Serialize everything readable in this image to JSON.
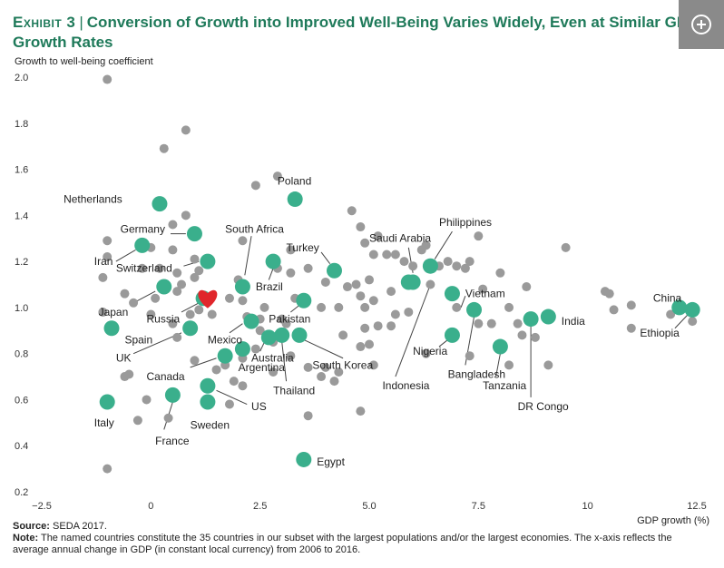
{
  "header": {
    "exhibit": "Exhibit 3",
    "title_line1": "Conversion of Growth into Improved Well-Being Varies Widely, Even at Similar GDP",
    "title_line2": "Growth Rates"
  },
  "expand_icon": "plus-circle-icon",
  "footer": {
    "source_label": "Source:",
    "source_text": "SEDA 2017.",
    "note_label": "Note:",
    "note_text": "The named countries constitute the 35 countries in our subset with the largest populations and/or the largest economies. The x-axis reflects the average annual change in GDP (in constant local currency) from 2006 to 2016."
  },
  "colors": {
    "named": "#3aaf8c",
    "other": "#9a9a9a",
    "highlight": "#e0262b",
    "title": "#1f7a5a"
  },
  "chart_data": {
    "type": "scatter",
    "title": "Conversion of Growth into Improved Well-Being Varies Widely, Even at Similar GDP Growth Rates",
    "xlabel": "GDP growth (%)",
    "ylabel": "Growth to well-being coefficient",
    "xlim": [
      -2.5,
      12.5
    ],
    "ylim": [
      0.2,
      2.0
    ],
    "x_ticks": [
      -2.5,
      0,
      2.5,
      5.0,
      7.5,
      10,
      12.5
    ],
    "x_tick_labels": [
      "−2.5",
      "0",
      "2.5",
      "5.0",
      "7.5",
      "10",
      "12.5"
    ],
    "y_ticks": [
      0.2,
      0.4,
      0.6,
      0.8,
      1.0,
      1.2,
      1.4,
      1.6,
      1.8,
      2.0
    ],
    "y_tick_labels": [
      "0.2",
      "0.4",
      "0.6",
      "0.8",
      "1.0",
      "1.2",
      "1.4",
      "1.6",
      "1.8",
      "2.0"
    ],
    "grid": false,
    "named_countries": [
      {
        "name": "Netherlands",
        "x": 0.2,
        "y": 1.45
      },
      {
        "name": "Poland",
        "x": 3.3,
        "y": 1.47
      },
      {
        "name": "Germany",
        "x": 1.0,
        "y": 1.32
      },
      {
        "name": "South Africa",
        "x": 2.1,
        "y": 1.09
      },
      {
        "name": "Iran",
        "x": -0.2,
        "y": 1.27
      },
      {
        "name": "Switzerland",
        "x": 1.3,
        "y": 1.2
      },
      {
        "name": "Brazil",
        "x": 2.8,
        "y": 1.2
      },
      {
        "name": "Turkey",
        "x": 4.2,
        "y": 1.16
      },
      {
        "name": "Saudi Arabia",
        "x": 6.0,
        "y": 1.11
      },
      {
        "name": "Philippines",
        "x": 6.4,
        "y": 1.18
      },
      {
        "name": "Japan",
        "x": 0.3,
        "y": 1.09
      },
      {
        "name": "Russia",
        "x": 1.2,
        "y": 1.04
      },
      {
        "name": "Spain",
        "x": -0.9,
        "y": 0.91
      },
      {
        "name": "Mexico",
        "x": 2.3,
        "y": 0.94
      },
      {
        "name": "Pakistan",
        "x": 3.5,
        "y": 1.03
      },
      {
        "name": "UK",
        "x": 0.9,
        "y": 0.91
      },
      {
        "name": "Vietnam",
        "x": 6.9,
        "y": 1.06
      },
      {
        "name": "China",
        "x": 12.1,
        "y": 1.0
      },
      {
        "name": "India",
        "x": 9.1,
        "y": 0.96
      },
      {
        "name": "Ethiopia",
        "x": 12.4,
        "y": 0.99
      },
      {
        "name": "Nigeria",
        "x": 6.9,
        "y": 0.88
      },
      {
        "name": "Bangladesh",
        "x": 7.4,
        "y": 0.99
      },
      {
        "name": "Canada",
        "x": 1.7,
        "y": 0.79
      },
      {
        "name": "Australia",
        "x": 2.7,
        "y": 0.87
      },
      {
        "name": "Argentina",
        "x": 2.1,
        "y": 0.82
      },
      {
        "name": "South Korea",
        "x": 3.4,
        "y": 0.88
      },
      {
        "name": "Thailand",
        "x": 3.0,
        "y": 0.88
      },
      {
        "name": "Indonesia",
        "x": 5.9,
        "y": 1.11
      },
      {
        "name": "Tanzania",
        "x": 8.0,
        "y": 0.83
      },
      {
        "name": "DR Congo",
        "x": 8.7,
        "y": 0.95
      },
      {
        "name": "Italy",
        "x": -1.0,
        "y": 0.59
      },
      {
        "name": "France",
        "x": 0.5,
        "y": 0.62
      },
      {
        "name": "Sweden",
        "x": 1.3,
        "y": 0.59
      },
      {
        "name": "US",
        "x": 1.3,
        "y": 0.66
      },
      {
        "name": "Egypt",
        "x": 3.5,
        "y": 0.34
      }
    ],
    "highlight_point": {
      "x": 1.3,
      "y": 1.04
    },
    "other_countries": [
      [
        -1.0,
        1.99
      ],
      [
        0.8,
        1.77
      ],
      [
        0.3,
        1.69
      ],
      [
        2.9,
        1.57
      ],
      [
        2.4,
        1.53
      ],
      [
        -1.0,
        1.29
      ],
      [
        -1.0,
        1.22
      ],
      [
        -1.1,
        1.13
      ],
      [
        0.8,
        1.4
      ],
      [
        0.5,
        1.36
      ],
      [
        0.0,
        1.26
      ],
      [
        0.5,
        1.25
      ],
      [
        1.0,
        1.21
      ],
      [
        -0.2,
        1.17
      ],
      [
        0.2,
        1.17
      ],
      [
        0.6,
        1.15
      ],
      [
        0.7,
        1.1
      ],
      [
        1.0,
        1.13
      ],
      [
        1.1,
        1.16
      ],
      [
        2.1,
        1.29
      ],
      [
        2.9,
        1.17
      ],
      [
        3.2,
        1.15
      ],
      [
        3.6,
        1.17
      ],
      [
        3.2,
        1.25
      ],
      [
        2.0,
        1.12
      ],
      [
        0.6,
        1.07
      ],
      [
        0.1,
        1.04
      ],
      [
        -0.4,
        1.02
      ],
      [
        -0.6,
        1.06
      ],
      [
        -1.1,
        0.98
      ],
      [
        0.0,
        0.97
      ],
      [
        0.5,
        0.93
      ],
      [
        0.9,
        0.97
      ],
      [
        1.1,
        0.99
      ],
      [
        1.4,
        0.97
      ],
      [
        1.8,
        1.04
      ],
      [
        2.1,
        1.03
      ],
      [
        2.5,
        0.95
      ],
      [
        2.6,
        1.0
      ],
      [
        2.2,
        0.96
      ],
      [
        2.5,
        0.9
      ],
      [
        2.8,
        0.85
      ],
      [
        3.0,
        0.95
      ],
      [
        3.1,
        0.93
      ],
      [
        3.3,
        1.04
      ],
      [
        3.9,
        1.0
      ],
      [
        4.0,
        1.11
      ],
      [
        4.3,
        1.0
      ],
      [
        4.5,
        1.09
      ],
      [
        4.7,
        1.1
      ],
      [
        4.8,
        1.05
      ],
      [
        4.9,
        1.0
      ],
      [
        5.0,
        1.12
      ],
      [
        5.1,
        1.03
      ],
      [
        4.6,
        1.42
      ],
      [
        4.8,
        1.35
      ],
      [
        4.9,
        1.28
      ],
      [
        5.1,
        1.23
      ],
      [
        5.2,
        1.31
      ],
      [
        5.4,
        1.23
      ],
      [
        5.6,
        1.23
      ],
      [
        5.5,
        1.07
      ],
      [
        5.8,
        1.2
      ],
      [
        6.0,
        1.18
      ],
      [
        6.2,
        1.25
      ],
      [
        6.3,
        1.27
      ],
      [
        6.4,
        1.1
      ],
      [
        6.6,
        1.18
      ],
      [
        6.8,
        1.2
      ],
      [
        7.0,
        1.18
      ],
      [
        7.2,
        1.17
      ],
      [
        7.3,
        1.2
      ],
      [
        7.5,
        1.31
      ],
      [
        7.0,
        1.0
      ],
      [
        7.6,
        1.08
      ],
      [
        8.0,
        1.15
      ],
      [
        8.2,
        1.0
      ],
      [
        8.4,
        0.93
      ],
      [
        8.6,
        1.09
      ],
      [
        9.5,
        1.26
      ],
      [
        7.5,
        0.93
      ],
      [
        7.8,
        0.93
      ],
      [
        8.5,
        0.88
      ],
      [
        8.8,
        0.87
      ],
      [
        9.1,
        0.75
      ],
      [
        8.2,
        0.75
      ],
      [
        7.3,
        0.79
      ],
      [
        10.4,
        1.07
      ],
      [
        10.5,
        1.06
      ],
      [
        10.6,
        0.99
      ],
      [
        11.0,
        1.01
      ],
      [
        11.0,
        0.91
      ],
      [
        11.9,
        0.97
      ],
      [
        12.4,
        0.94
      ],
      [
        5.9,
        0.98
      ],
      [
        5.6,
        0.97
      ],
      [
        5.2,
        0.92
      ],
      [
        4.9,
        0.91
      ],
      [
        4.8,
        0.83
      ],
      [
        5.0,
        0.84
      ],
      [
        5.1,
        0.75
      ],
      [
        4.4,
        0.88
      ],
      [
        4.3,
        0.72
      ],
      [
        4.0,
        0.74
      ],
      [
        3.9,
        0.7
      ],
      [
        4.2,
        0.68
      ],
      [
        3.6,
        0.74
      ],
      [
        3.2,
        0.79
      ],
      [
        2.8,
        0.72
      ],
      [
        2.4,
        0.82
      ],
      [
        2.1,
        0.78
      ],
      [
        1.9,
        0.68
      ],
      [
        1.7,
        0.75
      ],
      [
        1.5,
        0.73
      ],
      [
        1.0,
        0.77
      ],
      [
        0.6,
        0.87
      ],
      [
        -0.5,
        0.71
      ],
      [
        -0.6,
        0.7
      ],
      [
        -0.1,
        0.6
      ],
      [
        0.4,
        0.52
      ],
      [
        -0.3,
        0.51
      ],
      [
        -1.0,
        0.3
      ],
      [
        2.1,
        0.66
      ],
      [
        3.6,
        0.53
      ],
      [
        4.8,
        0.55
      ],
      [
        1.8,
        0.58
      ],
      [
        5.5,
        0.92
      ],
      [
        6.3,
        0.8
      ]
    ],
    "annotations": [
      {
        "label": "Netherlands",
        "tx": -2.0,
        "ty": 1.47,
        "anchor": "start"
      },
      {
        "label": "Poland",
        "tx": 2.9,
        "ty": 1.55,
        "anchor": "start"
      },
      {
        "label": "Germany",
        "tx": -0.7,
        "ty": 1.34,
        "anchor": "start",
        "line": [
          [
            0.45,
            1.32
          ],
          [
            0.8,
            1.32
          ]
        ]
      },
      {
        "label": "South Africa",
        "tx": 1.7,
        "ty": 1.34,
        "anchor": "start",
        "line": [
          [
            2.3,
            1.31
          ],
          [
            2.15,
            1.14
          ]
        ]
      },
      {
        "label": "Iran",
        "tx": -1.3,
        "ty": 1.2,
        "anchor": "start",
        "line": [
          [
            -0.8,
            1.2
          ],
          [
            -0.35,
            1.25
          ]
        ]
      },
      {
        "label": "Switzerland",
        "tx": -0.8,
        "ty": 1.17,
        "anchor": "start",
        "line": [
          [
            0.75,
            1.18
          ],
          [
            1.1,
            1.2
          ]
        ]
      },
      {
        "label": "Brazil",
        "tx": 2.4,
        "ty": 1.09,
        "anchor": "start",
        "line": [
          [
            2.7,
            1.12
          ],
          [
            2.8,
            1.17
          ]
        ]
      },
      {
        "label": "Turkey",
        "tx": 3.1,
        "ty": 1.26,
        "anchor": "start",
        "line": [
          [
            3.9,
            1.24
          ],
          [
            4.1,
            1.19
          ]
        ]
      },
      {
        "label": "Saudi Arabia",
        "tx": 5.0,
        "ty": 1.3,
        "anchor": "start",
        "line": [
          [
            5.9,
            1.26
          ],
          [
            6.0,
            1.15
          ]
        ]
      },
      {
        "label": "Philippines",
        "tx": 6.6,
        "ty": 1.37,
        "anchor": "start",
        "line": [
          [
            6.9,
            1.33
          ],
          [
            6.5,
            1.21
          ]
        ]
      },
      {
        "label": "Japan",
        "tx": -1.2,
        "ty": 0.98,
        "anchor": "start",
        "line": [
          [
            -0.4,
            1.02
          ],
          [
            0.1,
            1.07
          ]
        ]
      },
      {
        "label": "Russia",
        "tx": -0.1,
        "ty": 0.95,
        "anchor": "start",
        "line": [
          [
            0.7,
            0.98
          ],
          [
            1.1,
            1.02
          ]
        ]
      },
      {
        "label": "Spain",
        "tx": -0.6,
        "ty": 0.86,
        "anchor": "start"
      },
      {
        "label": "Mexico",
        "tx": 1.3,
        "ty": 0.86,
        "anchor": "start",
        "line": [
          [
            1.8,
            0.89
          ],
          [
            2.1,
            0.93
          ]
        ]
      },
      {
        "label": "Pakistan",
        "tx": 2.7,
        "ty": 0.95,
        "anchor": "start",
        "line": [
          [
            3.2,
            0.98
          ],
          [
            3.4,
            1.01
          ]
        ]
      },
      {
        "label": "UK",
        "tx": -0.8,
        "ty": 0.78,
        "anchor": "start",
        "line": [
          [
            -0.4,
            0.8
          ],
          [
            0.7,
            0.89
          ]
        ]
      },
      {
        "label": "Vietnam",
        "tx": 7.2,
        "ty": 1.06,
        "anchor": "start",
        "line": [
          [
            7.2,
            1.05
          ],
          [
            7.1,
            1.0
          ]
        ]
      },
      {
        "label": "China",
        "tx": 11.5,
        "ty": 1.04,
        "anchor": "start",
        "line": [
          [
            12.1,
            1.04
          ],
          [
            12.1,
            1.03
          ]
        ]
      },
      {
        "label": "India",
        "tx": 9.4,
        "ty": 0.94,
        "anchor": "start"
      },
      {
        "label": "Ethiopia",
        "tx": 11.2,
        "ty": 0.89,
        "anchor": "start",
        "line": [
          [
            12.0,
            0.91
          ],
          [
            12.3,
            0.97
          ]
        ]
      },
      {
        "label": "Nigeria",
        "tx": 6.0,
        "ty": 0.81,
        "anchor": "start",
        "line": [
          [
            6.6,
            0.83
          ],
          [
            6.8,
            0.86
          ]
        ]
      },
      {
        "label": "Bangladesh",
        "tx": 6.8,
        "ty": 0.71,
        "anchor": "start",
        "line": [
          [
            7.2,
            0.75
          ],
          [
            7.4,
            0.96
          ]
        ]
      },
      {
        "label": "Canada",
        "tx": -0.1,
        "ty": 0.7,
        "anchor": "start",
        "line": [
          [
            0.9,
            0.74
          ],
          [
            1.5,
            0.78
          ]
        ]
      },
      {
        "label": "Australia",
        "tx": 2.3,
        "ty": 0.78,
        "anchor": "start",
        "line": [
          [
            2.5,
            0.81
          ],
          [
            2.6,
            0.85
          ]
        ]
      },
      {
        "label": "Argentina",
        "tx": 2.0,
        "ty": 0.74,
        "anchor": "start",
        "line": [
          [
            2.1,
            0.77
          ],
          [
            2.1,
            0.8
          ]
        ]
      },
      {
        "label": "South Korea",
        "tx": 3.7,
        "ty": 0.75,
        "anchor": "start",
        "line": [
          [
            4.4,
            0.78
          ],
          [
            3.5,
            0.86
          ]
        ]
      },
      {
        "label": "Thailand",
        "tx": 2.8,
        "ty": 0.64,
        "anchor": "start",
        "line": [
          [
            3.1,
            0.68
          ],
          [
            3.0,
            0.85
          ]
        ]
      },
      {
        "label": "Indonesia",
        "tx": 5.3,
        "ty": 0.66,
        "anchor": "start",
        "line": [
          [
            5.6,
            0.7
          ],
          [
            6.4,
            1.1
          ]
        ]
      },
      {
        "label": "Tanzania",
        "tx": 7.6,
        "ty": 0.66,
        "anchor": "start",
        "line": [
          [
            7.9,
            0.7
          ],
          [
            8.0,
            0.8
          ]
        ]
      },
      {
        "label": "DR Congo",
        "tx": 8.4,
        "ty": 0.57,
        "anchor": "start",
        "line": [
          [
            8.7,
            0.61
          ],
          [
            8.7,
            0.92
          ]
        ]
      },
      {
        "label": "Italy",
        "tx": -1.3,
        "ty": 0.5,
        "anchor": "start"
      },
      {
        "label": "France",
        "tx": 0.1,
        "ty": 0.42,
        "anchor": "start",
        "line": [
          [
            0.3,
            0.47
          ],
          [
            0.5,
            0.59
          ]
        ]
      },
      {
        "label": "Sweden",
        "tx": 0.9,
        "ty": 0.49,
        "anchor": "start"
      },
      {
        "label": "US",
        "tx": 2.3,
        "ty": 0.57,
        "anchor": "start",
        "line": [
          [
            2.2,
            0.58
          ],
          [
            1.5,
            0.64
          ]
        ]
      },
      {
        "label": "Egypt",
        "tx": 3.8,
        "ty": 0.33,
        "anchor": "start"
      }
    ]
  }
}
